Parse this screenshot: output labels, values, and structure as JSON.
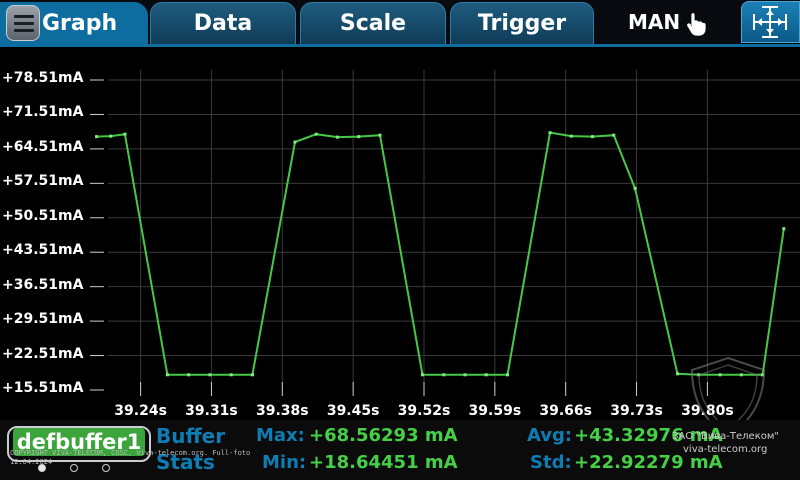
{
  "tabs": [
    {
      "label": "Graph",
      "active": true
    },
    {
      "label": "Data",
      "active": false
    },
    {
      "label": "Scale",
      "active": false
    },
    {
      "label": "Trigger",
      "active": false
    }
  ],
  "mode_label": "MAN",
  "icons": {
    "menu": "hamburger-icon",
    "hand": "hand-pointer-icon",
    "autoscale": "autoscale-arrows-icon"
  },
  "colors": {
    "accent": "#0d6d9f",
    "trace": "#46c846",
    "label_blue": "#0d7db3",
    "value_green": "#46d046"
  },
  "chart_data": {
    "type": "line",
    "grid": true,
    "ylim": [
      15.51,
      78.51
    ],
    "xlim": [
      39.19,
      39.8915
    ],
    "y_ticks": [
      "+78.51mA",
      "+71.51mA",
      "+64.51mA",
      "+57.51mA",
      "+50.51mA",
      "+43.51mA",
      "+36.51mA",
      "+29.51mA",
      "+22.51mA",
      "+15.51mA"
    ],
    "x_ticks": [
      "39.24s",
      "39.31s",
      "39.38s",
      "39.45s",
      "39.52s",
      "39.59s",
      "39.66s",
      "39.73s",
      "39.80s"
    ],
    "series": [
      {
        "x": [
          39.1965,
          39.2105,
          39.2245,
          39.2665,
          39.2875,
          39.3085,
          39.3295,
          39.3505,
          39.3925,
          39.4135,
          39.4345,
          39.4555,
          39.4765,
          39.5185,
          39.5395,
          39.5605,
          39.5815,
          39.6025,
          39.6445,
          39.6655,
          39.6865,
          39.7075,
          39.7285,
          39.7705,
          39.7915,
          39.8125,
          39.8335,
          39.8545,
          39.8755
        ],
        "y": [
          67.0,
          67.1,
          67.5,
          18.6,
          18.6,
          18.6,
          18.6,
          18.6,
          65.9,
          67.5,
          66.9,
          67.0,
          67.3,
          18.6,
          18.6,
          18.6,
          18.6,
          18.6,
          67.8,
          67.1,
          67.0,
          67.3,
          56.5,
          18.8,
          18.6,
          18.6,
          18.6,
          18.6,
          48.3
        ]
      }
    ]
  },
  "buffer": {
    "name": "defbuffer1",
    "stats_line1": "Buffer",
    "stats_line2": "Stats"
  },
  "stats": {
    "max_label": "Max:",
    "max_value": "+68.56293 mA",
    "min_label": "Min:",
    "min_value": "+18.64451 mA",
    "avg_label": "Avg:",
    "avg_value": "+43.32976 mA",
    "std_label": "Std:",
    "std_value": "+22.92279 mA"
  },
  "watermark": {
    "copyright_line1": "COPYRIGHT VIVA-TELECOM, COSC, Viva-telecom.org. Full-foto",
    "copyright_line2": "12.04.2024",
    "company": "ЗАО \"Вива-Телеком\"",
    "site": "viva-telecom.org"
  }
}
